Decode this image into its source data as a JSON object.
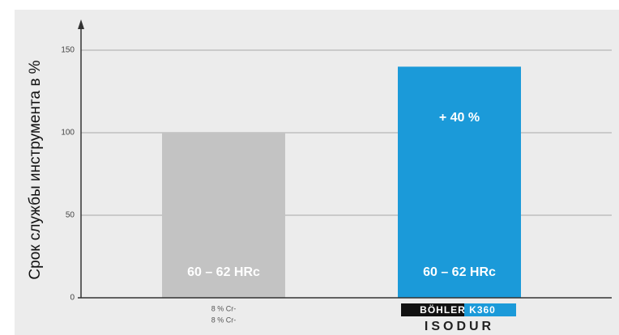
{
  "chart_data": {
    "type": "bar",
    "y_label": "Срок службы инструмента в %",
    "categories": [
      "8 % Cr-",
      "BÖHLER K360"
    ],
    "category_sublabels": [
      "8 % Cr-",
      "ISODUR"
    ],
    "values": [
      100,
      140
    ],
    "colors": [
      "#c3c3c3",
      "#1b9ad9"
    ],
    "bar_labels": [
      "60 – 62 HRc",
      "60 – 62 HRc"
    ],
    "annotation": "+ 40 %",
    "ylim": [
      0,
      150
    ],
    "yticks": [
      0,
      50,
      100,
      150
    ],
    "grid": true
  }
}
